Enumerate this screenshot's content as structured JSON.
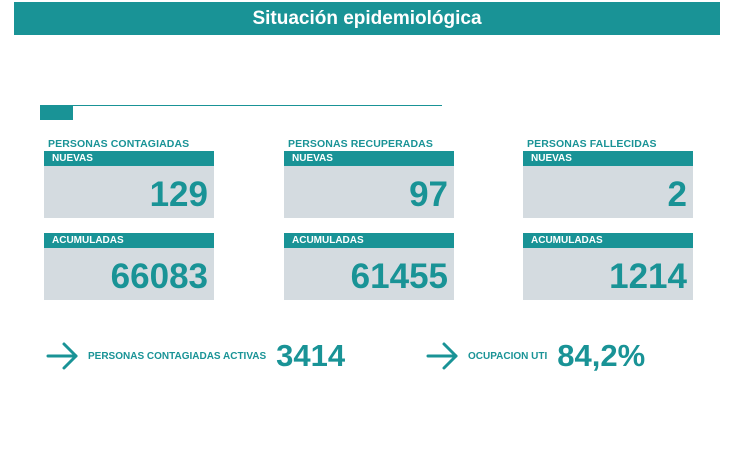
{
  "title": "Situación epidemiológica",
  "columns": [
    {
      "heading": "PERSONAS CONTAGIADAS",
      "new_label": "NUEVAS",
      "new_value": "129",
      "acc_label": "ACUMULADAS",
      "acc_value": "66083"
    },
    {
      "heading": "PERSONAS RECUPERADAS",
      "new_label": "NUEVAS",
      "new_value": "97",
      "acc_label": "ACUMULADAS",
      "acc_value": "61455"
    },
    {
      "heading": "PERSONAS FALLECIDAS",
      "new_label": "NUEVAS",
      "new_value": "2",
      "acc_label": "ACUMULADAS",
      "acc_value": "1214"
    }
  ],
  "summary": {
    "active_label": "PERSONAS CONTAGIADAS ACTIVAS",
    "active_value": "3414",
    "icu_label": "OCUPACION UTI",
    "icu_value": "84,2%"
  },
  "colors": {
    "accent": "#199396",
    "card_bg": "#d4dbe0",
    "background": "#ffffff"
  },
  "icons": [
    "arrow-right-icon"
  ]
}
